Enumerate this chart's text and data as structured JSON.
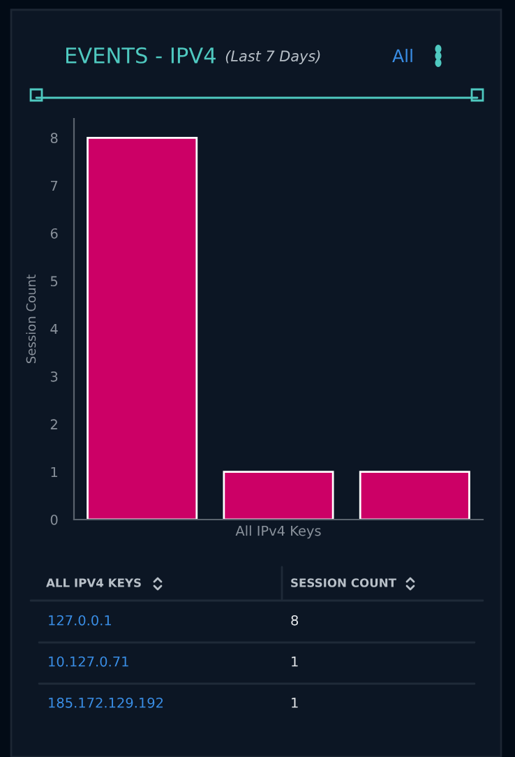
{
  "chart_data": {
    "type": "bar",
    "title": "EVENTS - IPV4",
    "subtitle": "(Last 7 Days)",
    "xlabel": "All IPv4 Keys",
    "ylabel": "Session Count",
    "categories": [
      null,
      null,
      null
    ],
    "values": [
      8,
      1,
      1
    ],
    "color": "#cc0066",
    "ylim": [
      0,
      8.4
    ],
    "yticks": [
      0,
      1,
      2,
      3,
      4,
      5,
      6,
      7,
      8
    ],
    "tick_labels": "y",
    "grid": false,
    "legend": false,
    "annotations": [
      "All",
      "ALL IPV4 KEYS",
      "SESSION COUNT",
      "127.0.0.1",
      "8",
      "10.127.0.71",
      "1",
      "185.172.129.192",
      "1"
    ]
  }
}
